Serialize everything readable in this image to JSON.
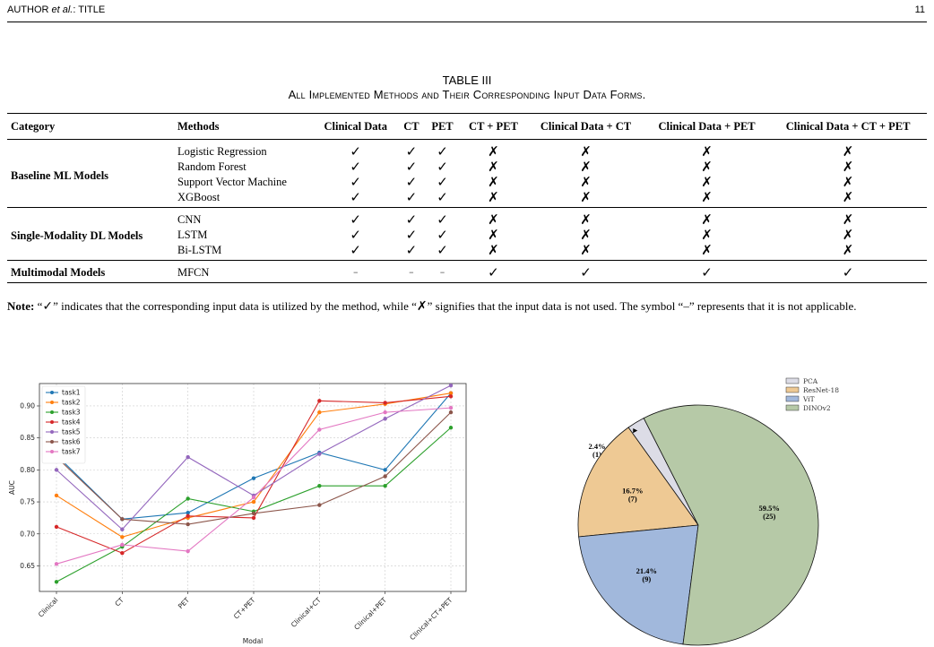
{
  "header": {
    "left_author": "AUTHOR ",
    "left_etal": "et al.",
    "left_rest": ": TITLE",
    "page_number": "11"
  },
  "table": {
    "label": "TABLE III",
    "caption": "All Implemented Methods and Their Corresponding Input Data Forms.",
    "columns": [
      "Category",
      "Methods",
      "Clinical Data",
      "CT",
      "PET",
      "CT + PET",
      "Clinical Data + CT",
      "Clinical Data + PET",
      "Clinical Data + CT + PET"
    ],
    "groups": [
      {
        "category": "Baseline ML Models",
        "rows": [
          {
            "method": "Logistic Regression",
            "cells": [
              "✓",
              "✓",
              "✓",
              "✗",
              "✗",
              "✗",
              "✗"
            ]
          },
          {
            "method": "Random Forest",
            "cells": [
              "✓",
              "✓",
              "✓",
              "✗",
              "✗",
              "✗",
              "✗"
            ]
          },
          {
            "method": "Support Vector Machine",
            "cells": [
              "✓",
              "✓",
              "✓",
              "✗",
              "✗",
              "✗",
              "✗"
            ]
          },
          {
            "method": "XGBoost",
            "cells": [
              "✓",
              "✓",
              "✓",
              "✗",
              "✗",
              "✗",
              "✗"
            ]
          }
        ]
      },
      {
        "category": "Single-Modality DL Models",
        "rows": [
          {
            "method": "CNN",
            "cells": [
              "✓",
              "✓",
              "✓",
              "✗",
              "✗",
              "✗",
              "✗"
            ]
          },
          {
            "method": "LSTM",
            "cells": [
              "✓",
              "✓",
              "✓",
              "✗",
              "✗",
              "✗",
              "✗"
            ]
          },
          {
            "method": "Bi-LSTM",
            "cells": [
              "✓",
              "✓",
              "✓",
              "✗",
              "✗",
              "✗",
              "✗"
            ]
          }
        ]
      },
      {
        "category": "Multimodal Models",
        "rows": [
          {
            "method": "MFCN",
            "cells": [
              "–",
              "–",
              "–",
              "✓",
              "✓",
              "✓",
              "✓"
            ]
          }
        ]
      }
    ]
  },
  "note": {
    "label": "Note:",
    "t1": " “",
    "check": "✓",
    "t2": "” indicates that the corresponding input data is utilized by the method, while “",
    "cross": "✗",
    "t3": "” signifies that the input data is not used. The symbol “–” represents that it is not applicable."
  },
  "chart_data": [
    {
      "type": "line",
      "xlabel": "Modal",
      "ylabel": "AUC",
      "categories": [
        "Clinical",
        "CT",
        "PET",
        "CT+PET",
        "Clinical+CT",
        "Clinical+PET",
        "Clinical+CT+PET"
      ],
      "yticks": [
        "0.65",
        "0.70",
        "0.75",
        "0.80",
        "0.85",
        "0.90"
      ],
      "ylim": [
        0.61,
        0.935
      ],
      "grid": true,
      "legend_position": "upper-left",
      "series": [
        {
          "name": "task1",
          "color": "#1f77b4",
          "values": [
            0.823,
            0.723,
            0.733,
            0.787,
            0.827,
            0.8,
            0.92
          ]
        },
        {
          "name": "task2",
          "color": "#ff7f0e",
          "values": [
            0.76,
            0.695,
            0.725,
            0.75,
            0.89,
            0.903,
            0.92
          ]
        },
        {
          "name": "task3",
          "color": "#2ca02c",
          "values": [
            0.625,
            0.68,
            0.755,
            0.735,
            0.775,
            0.775,
            0.866
          ]
        },
        {
          "name": "task4",
          "color": "#d62728",
          "values": [
            0.711,
            0.67,
            0.728,
            0.725,
            0.908,
            0.905,
            0.915
          ]
        },
        {
          "name": "task5",
          "color": "#9467bd",
          "values": [
            0.8,
            0.707,
            0.82,
            0.76,
            0.825,
            0.88,
            0.932
          ]
        },
        {
          "name": "task6",
          "color": "#8c564b",
          "values": [
            0.82,
            0.723,
            0.715,
            0.732,
            0.745,
            0.79,
            0.89
          ]
        },
        {
          "name": "task7",
          "color": "#e377c2",
          "values": [
            0.653,
            0.683,
            0.673,
            0.757,
            0.863,
            0.89,
            0.897
          ]
        }
      ]
    },
    {
      "type": "pie",
      "categories": [
        "PCA",
        "ResNet-18",
        "ViT",
        "DINOv2"
      ],
      "values": [
        1,
        7,
        9,
        25
      ],
      "percent_labels": [
        "2.4%",
        "16.7%",
        "21.4%",
        "59.5%"
      ],
      "count_labels": [
        "(1)",
        "(7)",
        "(9)",
        "(25)"
      ],
      "colors": [
        "#dcdce6",
        "#eec994",
        "#a1b8dc",
        "#b6c9a7"
      ],
      "legend_position": "upper-right"
    }
  ]
}
